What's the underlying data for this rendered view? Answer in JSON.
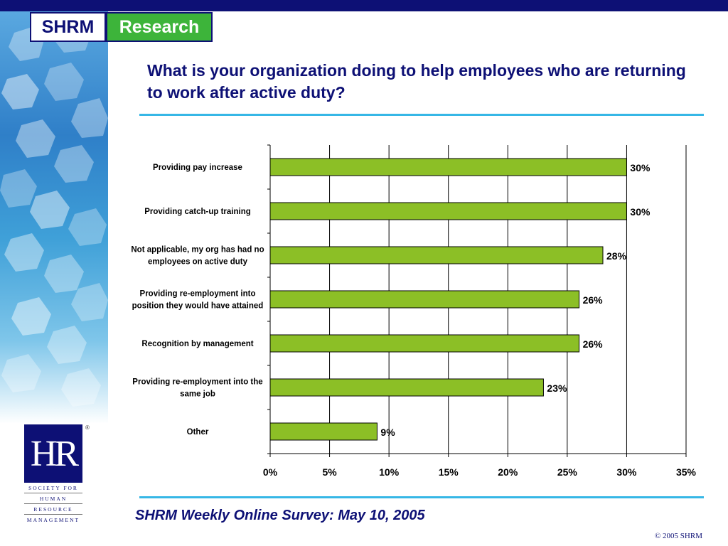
{
  "header": {
    "logo_left": "SHRM",
    "logo_right": "Research"
  },
  "title": "What is your organization doing to help employees who are returning to work after active duty?",
  "footer": {
    "survey": "SHRM Weekly Online Survey: May 10, 2005",
    "copyright": "© 2005 SHRM"
  },
  "hr_logo": {
    "mark": "HR",
    "registered": "®",
    "lines": [
      "SOCIETY FOR",
      "HUMAN",
      "RESOURCE",
      "MANAGEMENT"
    ]
  },
  "colors": {
    "navy": "#0d1075",
    "bar_fill": "#8cbf26",
    "accent_line": "#36b7e6",
    "research_green": "#3db43a"
  },
  "chart_data": {
    "type": "bar",
    "orientation": "horizontal",
    "categories": [
      [
        "Providing pay increase"
      ],
      [
        "Providing catch-up training"
      ],
      [
        "Not applicable, my org has had no",
        "employees on active duty"
      ],
      [
        "Providing re-employment into",
        "position they would have attained"
      ],
      [
        "Recognition by management"
      ],
      [
        "Providing re-employment into the",
        "same job"
      ],
      [
        "Other"
      ]
    ],
    "values": [
      30,
      30,
      28,
      26,
      26,
      23,
      9
    ],
    "value_labels": [
      "30%",
      "30%",
      "28%",
      "26%",
      "26%",
      "23%",
      "9%"
    ],
    "xlim": [
      0,
      35
    ],
    "x_ticks": [
      0,
      5,
      10,
      15,
      20,
      25,
      30,
      35
    ],
    "x_tick_labels": [
      "0%",
      "5%",
      "10%",
      "15%",
      "20%",
      "25%",
      "30%",
      "35%"
    ],
    "grid": "vertical"
  }
}
